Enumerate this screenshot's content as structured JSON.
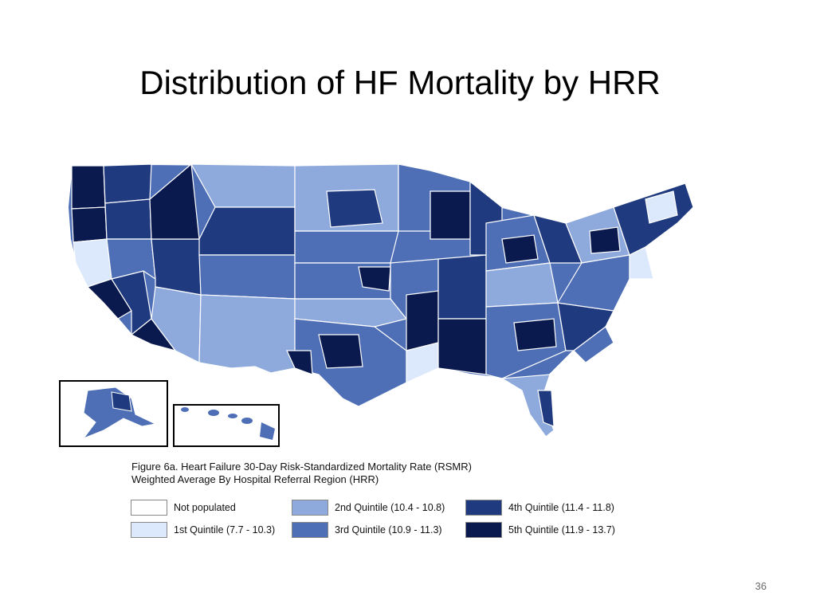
{
  "slide": {
    "title": "Distribution of HF Mortality by HRR",
    "page_number": "36"
  },
  "caption": {
    "line1": "Figure 6a. Heart Failure 30-Day Risk-Standardized Mortality Rate (RSMR)",
    "line2": "Weighted Average By Hospital Referral Region (HRR)"
  },
  "legend": {
    "items": [
      {
        "label": "Not populated",
        "color": "#ffffff"
      },
      {
        "label": "1st Quintile (7.7 - 10.3)",
        "color": "#dce8fb"
      },
      {
        "label": "2nd Quintile (10.4 - 10.8)",
        "color": "#8ea9dc"
      },
      {
        "label": "3rd Quintile (10.9 - 11.3)",
        "color": "#4e6fb5"
      },
      {
        "label": "4th Quintile (11.4 - 11.8)",
        "color": "#1f3a7f"
      },
      {
        "label": "5th Quintile (11.9 - 13.7)",
        "color": "#0a1a4f"
      }
    ]
  },
  "map": {
    "region_colors": {
      "q0": "#ffffff",
      "q1": "#dce8fb",
      "q2": "#8ea9dc",
      "q3": "#4e6fb5",
      "q4": "#1f3a7f",
      "q5": "#0a1a4f",
      "border": "#ffffff",
      "inset_frame": "#000000"
    }
  }
}
